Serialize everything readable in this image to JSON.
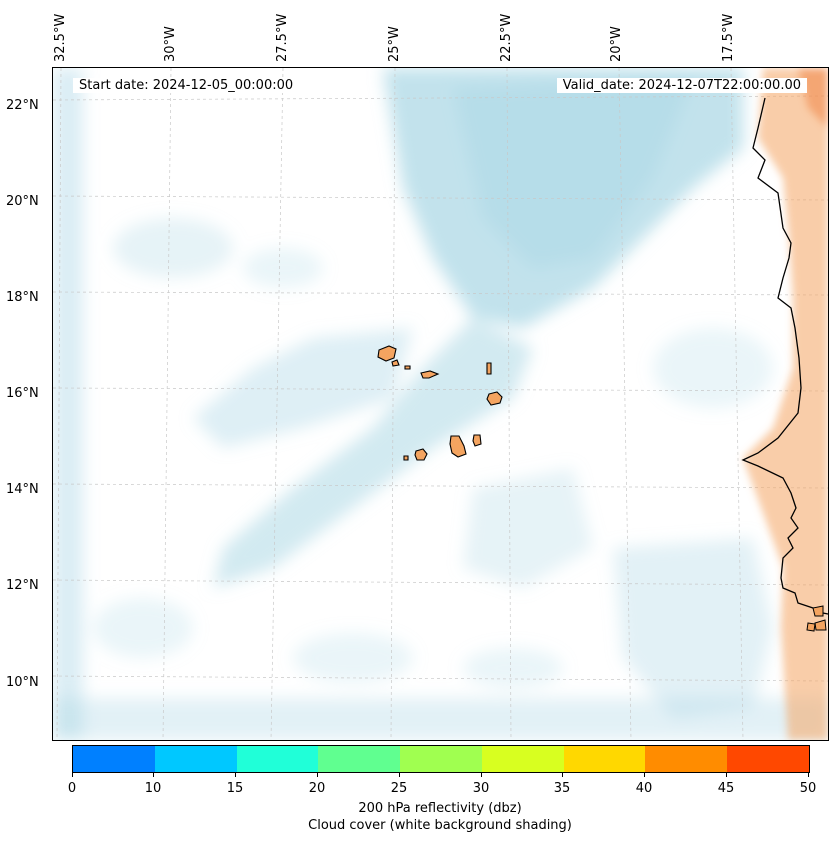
{
  "map": {
    "start_date": "Start date: 2024-12-05_00:00:00",
    "valid_date": "Valid_date: 2024-12-07T22:00:00.00",
    "longitude_labels": [
      "32.5°W",
      "30°W",
      "27.5°W",
      "25°W",
      "22.5°W",
      "20°W",
      "17.5°W"
    ],
    "latitude_labels": [
      "22°N",
      "20°N",
      "18°N",
      "16°N",
      "14°N",
      "12°N",
      "10°N"
    ],
    "colors": {
      "cloud_shading": "#add8e6",
      "land": "#f4a460",
      "coastline": "#000000",
      "gridline": "#c8c8c8"
    }
  },
  "colorbar": {
    "ticks": [
      "0",
      "10",
      "15",
      "20",
      "25",
      "30",
      "35",
      "40",
      "45",
      "50"
    ],
    "colors": [
      "#0080ff",
      "#00c8ff",
      "#20ffd8",
      "#60ff90",
      "#a0ff50",
      "#d8ff20",
      "#ffd800",
      "#ff8c00",
      "#ff4800"
    ],
    "label_line1": "200 hPa reflectivity (dbz)",
    "label_line2": "Cloud cover (white background shading)"
  }
}
